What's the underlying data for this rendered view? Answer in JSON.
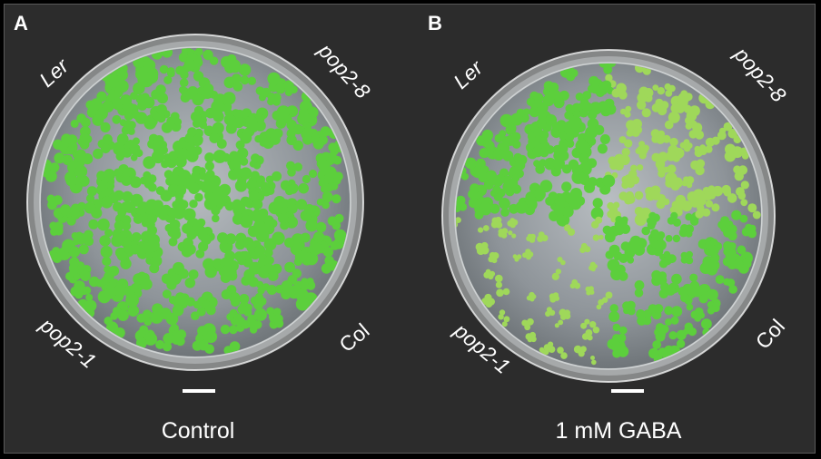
{
  "panels": [
    {
      "letter": "A",
      "caption": "Control",
      "labels": {
        "top_left": "Ler",
        "top_right": "pop2-8",
        "bottom_left": "pop2-1",
        "bottom_right": "Col"
      }
    },
    {
      "letter": "B",
      "caption": "1 mM GABA",
      "labels": {
        "top_left": "Ler",
        "top_right": "pop2-8",
        "bottom_left": "pop2-1",
        "bottom_right": "Col"
      }
    }
  ],
  "colors": {
    "background": "#2c2c2c",
    "border": "#5a5a5a",
    "text": "#ffffff",
    "seedling_green": "#5ccf3c",
    "seedling_light_green": "#9fd85a",
    "agar": "#9aa0a6"
  }
}
